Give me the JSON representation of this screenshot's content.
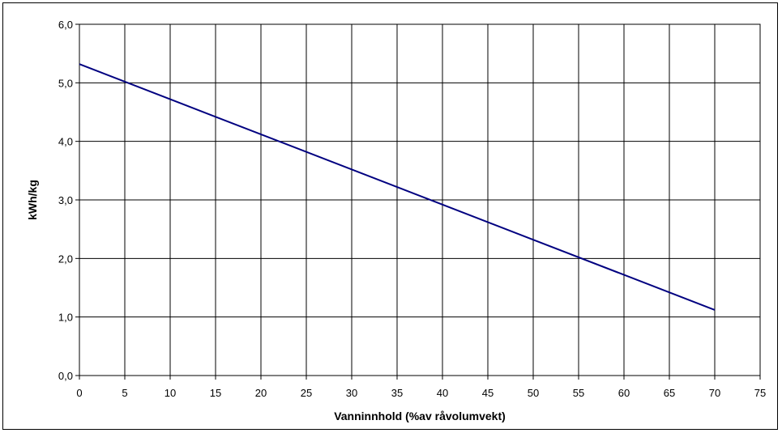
{
  "chart_data": {
    "type": "line",
    "xlabel": "Vanninnhold (%av råvolumvekt)",
    "ylabel": "kWh/kg",
    "xlim": [
      0,
      75
    ],
    "ylim": [
      0,
      6
    ],
    "x_ticks": [
      "0",
      "5",
      "10",
      "15",
      "20",
      "25",
      "30",
      "35",
      "40",
      "45",
      "50",
      "55",
      "60",
      "65",
      "70",
      "75"
    ],
    "y_ticks": [
      "0,0",
      "1,0",
      "2,0",
      "3,0",
      "4,0",
      "5,0",
      "6,0"
    ],
    "grid": true,
    "line_color": "#000080",
    "series": [
      {
        "x": [
          0,
          70
        ],
        "y": [
          5.32,
          1.12
        ]
      }
    ]
  }
}
